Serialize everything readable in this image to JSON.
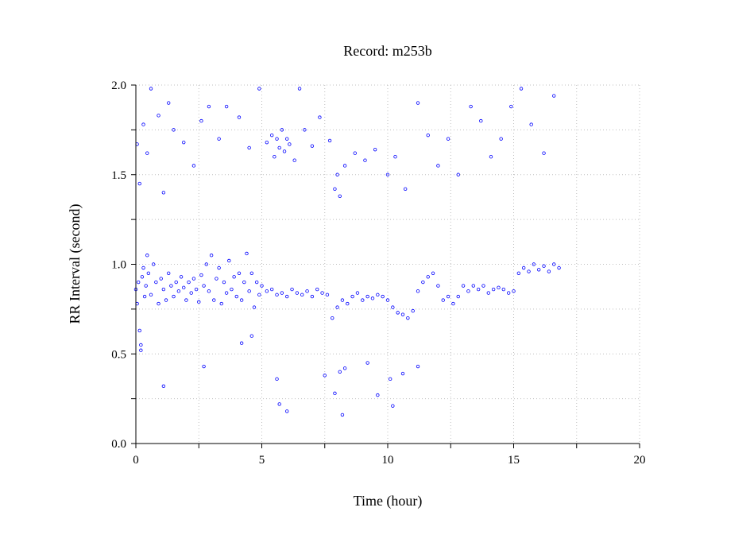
{
  "chart_data": {
    "type": "scatter",
    "title": "Record:  m253b",
    "xlabel": "Time (hour)",
    "ylabel": "RR Interval (second)",
    "xlim": [
      0,
      20
    ],
    "ylim": [
      0.0,
      2.0
    ],
    "x_ticks": [
      "0",
      "5",
      "10",
      "15",
      "20"
    ],
    "y_ticks": [
      "0.0",
      "0.5",
      "1.0",
      "1.5",
      "2.0"
    ],
    "grid": true,
    "colors": {
      "points": "#0000ff",
      "grid": "#bfbfbf",
      "axis": "#000000"
    },
    "point_style": "small hollow circles",
    "series": [
      {
        "values": [
          [
            0.0,
            0.86
          ],
          [
            0.05,
            0.78
          ],
          [
            0.1,
            0.9
          ],
          [
            0.15,
            0.63
          ],
          [
            0.2,
            0.55
          ],
          [
            0.25,
            0.93
          ],
          [
            0.3,
            0.98
          ],
          [
            0.35,
            0.82
          ],
          [
            0.4,
            0.88
          ],
          [
            0.45,
            1.05
          ],
          [
            0.5,
            0.95
          ],
          [
            0.6,
            0.83
          ],
          [
            0.7,
            1.0
          ],
          [
            0.8,
            0.9
          ],
          [
            0.9,
            0.78
          ],
          [
            1.0,
            0.92
          ],
          [
            1.1,
            0.86
          ],
          [
            1.2,
            0.8
          ],
          [
            1.3,
            0.95
          ],
          [
            1.4,
            0.88
          ],
          [
            1.5,
            0.82
          ],
          [
            1.6,
            0.9
          ],
          [
            1.7,
            0.85
          ],
          [
            1.8,
            0.93
          ],
          [
            1.9,
            0.87
          ],
          [
            2.0,
            0.8
          ],
          [
            2.1,
            0.9
          ],
          [
            2.2,
            0.84
          ],
          [
            2.3,
            0.92
          ],
          [
            2.4,
            0.86
          ],
          [
            2.5,
            0.79
          ],
          [
            2.6,
            0.94
          ],
          [
            2.7,
            0.88
          ],
          [
            2.8,
            1.0
          ],
          [
            2.9,
            0.85
          ],
          [
            3.0,
            1.05
          ],
          [
            3.1,
            0.8
          ],
          [
            3.2,
            0.92
          ],
          [
            3.3,
            0.98
          ],
          [
            3.4,
            0.78
          ],
          [
            3.5,
            0.9
          ],
          [
            3.6,
            0.84
          ],
          [
            3.7,
            1.02
          ],
          [
            3.8,
            0.86
          ],
          [
            3.9,
            0.93
          ],
          [
            4.0,
            0.82
          ],
          [
            4.1,
            0.95
          ],
          [
            4.2,
            0.8
          ],
          [
            4.3,
            0.9
          ],
          [
            4.4,
            1.06
          ],
          [
            4.5,
            0.85
          ],
          [
            4.6,
            0.95
          ],
          [
            4.7,
            0.76
          ],
          [
            4.8,
            0.9
          ],
          [
            4.9,
            0.83
          ],
          [
            5.0,
            0.88
          ],
          [
            5.2,
            0.85
          ],
          [
            5.4,
            0.86
          ],
          [
            5.6,
            0.83
          ],
          [
            5.8,
            0.84
          ],
          [
            6.0,
            0.82
          ],
          [
            6.2,
            0.86
          ],
          [
            6.4,
            0.84
          ],
          [
            6.6,
            0.83
          ],
          [
            6.8,
            0.85
          ],
          [
            7.0,
            0.82
          ],
          [
            7.2,
            0.86
          ],
          [
            7.4,
            0.84
          ],
          [
            7.6,
            0.83
          ],
          [
            7.8,
            0.7
          ],
          [
            8.0,
            0.76
          ],
          [
            8.2,
            0.8
          ],
          [
            8.4,
            0.78
          ],
          [
            8.6,
            0.82
          ],
          [
            8.8,
            0.84
          ],
          [
            9.0,
            0.8
          ],
          [
            9.2,
            0.82
          ],
          [
            9.4,
            0.81
          ],
          [
            9.6,
            0.83
          ],
          [
            9.8,
            0.82
          ],
          [
            10.0,
            0.8
          ],
          [
            10.2,
            0.76
          ],
          [
            10.4,
            0.73
          ],
          [
            10.6,
            0.72
          ],
          [
            10.8,
            0.7
          ],
          [
            11.0,
            0.74
          ],
          [
            11.2,
            0.85
          ],
          [
            11.4,
            0.9
          ],
          [
            11.6,
            0.93
          ],
          [
            11.8,
            0.95
          ],
          [
            12.0,
            0.88
          ],
          [
            12.2,
            0.8
          ],
          [
            12.4,
            0.82
          ],
          [
            12.6,
            0.78
          ],
          [
            12.8,
            0.82
          ],
          [
            13.0,
            0.88
          ],
          [
            13.2,
            0.85
          ],
          [
            13.4,
            0.88
          ],
          [
            13.6,
            0.86
          ],
          [
            13.8,
            0.88
          ],
          [
            14.0,
            0.84
          ],
          [
            14.2,
            0.86
          ],
          [
            14.4,
            0.87
          ],
          [
            14.6,
            0.86
          ],
          [
            14.8,
            0.84
          ],
          [
            15.0,
            0.85
          ],
          [
            15.2,
            0.95
          ],
          [
            15.4,
            0.98
          ],
          [
            15.6,
            0.96
          ],
          [
            15.8,
            1.0
          ],
          [
            16.0,
            0.97
          ],
          [
            16.2,
            0.99
          ],
          [
            16.4,
            0.96
          ],
          [
            16.6,
            1.0
          ],
          [
            16.8,
            0.98
          ],
          [
            0.05,
            1.67
          ],
          [
            0.15,
            1.45
          ],
          [
            0.3,
            1.78
          ],
          [
            0.45,
            1.62
          ],
          [
            0.6,
            1.98
          ],
          [
            0.9,
            1.83
          ],
          [
            1.1,
            1.4
          ],
          [
            1.3,
            1.9
          ],
          [
            1.5,
            1.75
          ],
          [
            1.9,
            1.68
          ],
          [
            2.3,
            1.55
          ],
          [
            2.6,
            1.8
          ],
          [
            2.9,
            1.88
          ],
          [
            3.3,
            1.7
          ],
          [
            3.6,
            1.88
          ],
          [
            4.1,
            1.82
          ],
          [
            4.5,
            1.65
          ],
          [
            4.9,
            1.98
          ],
          [
            5.2,
            1.68
          ],
          [
            5.4,
            1.72
          ],
          [
            5.5,
            1.6
          ],
          [
            5.6,
            1.7
          ],
          [
            5.7,
            1.65
          ],
          [
            5.8,
            1.75
          ],
          [
            5.9,
            1.63
          ],
          [
            6.0,
            1.7
          ],
          [
            6.1,
            1.67
          ],
          [
            6.3,
            1.58
          ],
          [
            6.5,
            1.98
          ],
          [
            6.7,
            1.75
          ],
          [
            7.0,
            1.66
          ],
          [
            7.3,
            1.82
          ],
          [
            7.7,
            1.69
          ],
          [
            7.9,
            1.42
          ],
          [
            8.0,
            1.5
          ],
          [
            8.1,
            1.38
          ],
          [
            8.3,
            1.55
          ],
          [
            8.7,
            1.62
          ],
          [
            9.1,
            1.58
          ],
          [
            9.5,
            1.64
          ],
          [
            10.0,
            1.5
          ],
          [
            10.3,
            1.6
          ],
          [
            10.7,
            1.42
          ],
          [
            11.2,
            1.9
          ],
          [
            11.6,
            1.72
          ],
          [
            12.0,
            1.55
          ],
          [
            12.4,
            1.7
          ],
          [
            12.8,
            1.5
          ],
          [
            13.3,
            1.88
          ],
          [
            13.7,
            1.8
          ],
          [
            14.1,
            1.6
          ],
          [
            14.5,
            1.7
          ],
          [
            14.9,
            1.88
          ],
          [
            15.3,
            1.98
          ],
          [
            15.7,
            1.78
          ],
          [
            16.2,
            1.62
          ],
          [
            16.6,
            1.94
          ],
          [
            0.2,
            0.52
          ],
          [
            1.1,
            0.32
          ],
          [
            2.7,
            0.43
          ],
          [
            5.6,
            0.36
          ],
          [
            5.7,
            0.22
          ],
          [
            6.0,
            0.18
          ],
          [
            7.5,
            0.38
          ],
          [
            7.9,
            0.28
          ],
          [
            8.1,
            0.4
          ],
          [
            8.2,
            0.16
          ],
          [
            8.3,
            0.42
          ],
          [
            9.2,
            0.45
          ],
          [
            9.6,
            0.27
          ],
          [
            10.1,
            0.36
          ],
          [
            10.2,
            0.21
          ],
          [
            10.6,
            0.39
          ],
          [
            11.2,
            0.43
          ],
          [
            4.2,
            0.56
          ],
          [
            4.6,
            0.6
          ]
        ]
      }
    ]
  }
}
